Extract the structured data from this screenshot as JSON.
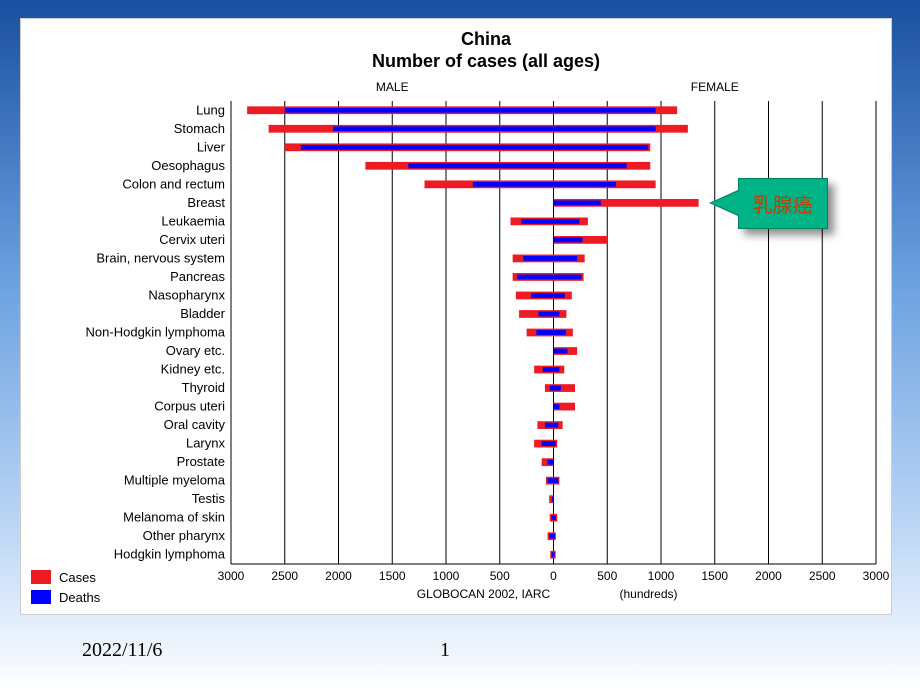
{
  "slide": {
    "footer_date": "2022/11/6",
    "footer_page": "1"
  },
  "chart": {
    "type": "pyramid-bar",
    "title_line1": "China",
    "title_line2": "Number of cases (all ages)",
    "male_label": "MALE",
    "female_label": "FEMALE",
    "x_axis_unit": "(hundreds)",
    "source_text": "GLOBOCAN 2002, IARC",
    "legend": {
      "cases": "Cases",
      "deaths": "Deaths"
    },
    "cases_color": "#ed1c24",
    "deaths_color": "#0000ff",
    "axis_color": "#000000",
    "grid_color": "#000000",
    "background_color": "#ffffff",
    "title_fontsize": 18,
    "title_weight": "bold",
    "label_fontsize": 13,
    "tick_fontsize": 12,
    "x_ticks": [
      3000,
      2500,
      2000,
      1500,
      1000,
      500,
      0,
      500,
      1000,
      1500,
      2000,
      2500,
      3000
    ],
    "x_max": 3000,
    "categories": [
      "Lung",
      "Stomach",
      "Liver",
      "Oesophagus",
      "Colon and rectum",
      "Breast",
      "Leukaemia",
      "Cervix uteri",
      "Brain, nervous system",
      "Pancreas",
      "Nasopharynx",
      "Bladder",
      "Non-Hodgkin lymphoma",
      "Ovary etc.",
      "Kidney etc.",
      "Thyroid",
      "Corpus uteri",
      "Oral cavity",
      "Larynx",
      "Prostate",
      "Multiple myeloma",
      "Testis",
      "Melanoma of skin",
      "Other pharynx",
      "Hodgkin lymphoma"
    ],
    "male_cases": [
      2850,
      2650,
      2500,
      1750,
      1200,
      0,
      400,
      0,
      380,
      380,
      350,
      320,
      250,
      0,
      180,
      80,
      0,
      150,
      180,
      110,
      70,
      40,
      35,
      55,
      30
    ],
    "male_deaths": [
      2500,
      2050,
      2350,
      1350,
      750,
      0,
      300,
      0,
      280,
      340,
      210,
      140,
      160,
      0,
      100,
      35,
      0,
      80,
      110,
      55,
      55,
      15,
      20,
      40,
      18
    ],
    "female_cases": [
      1150,
      1250,
      900,
      900,
      950,
      1350,
      320,
      500,
      290,
      280,
      170,
      120,
      180,
      220,
      100,
      200,
      200,
      85,
      35,
      0,
      55,
      0,
      35,
      22,
      20
    ],
    "female_deaths": [
      950,
      950,
      880,
      680,
      580,
      440,
      240,
      270,
      220,
      260,
      105,
      55,
      115,
      130,
      55,
      70,
      55,
      45,
      20,
      0,
      45,
      0,
      20,
      14,
      12
    ]
  },
  "callout": {
    "text": "乳腺癌",
    "points_to_category_index": 5
  }
}
